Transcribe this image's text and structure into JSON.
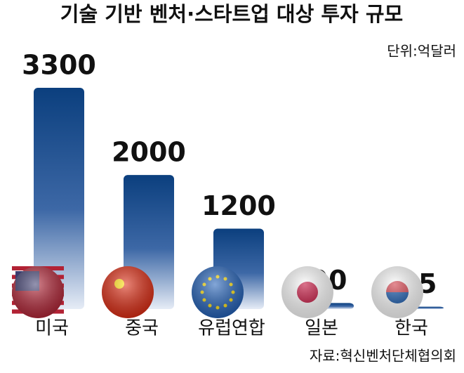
{
  "chart_data": {
    "type": "bar",
    "title": "기술 기반 벤처·스타트업 대상 투자 규모",
    "unit": "단위:억달러",
    "source": "자료:혁신벤처단체협의회",
    "categories": [
      "미국",
      "중국",
      "유럽연합",
      "일본",
      "한국"
    ],
    "values": [
      3300,
      2000,
      1200,
      90,
      35
    ],
    "color": "#0b3f7e"
  }
}
